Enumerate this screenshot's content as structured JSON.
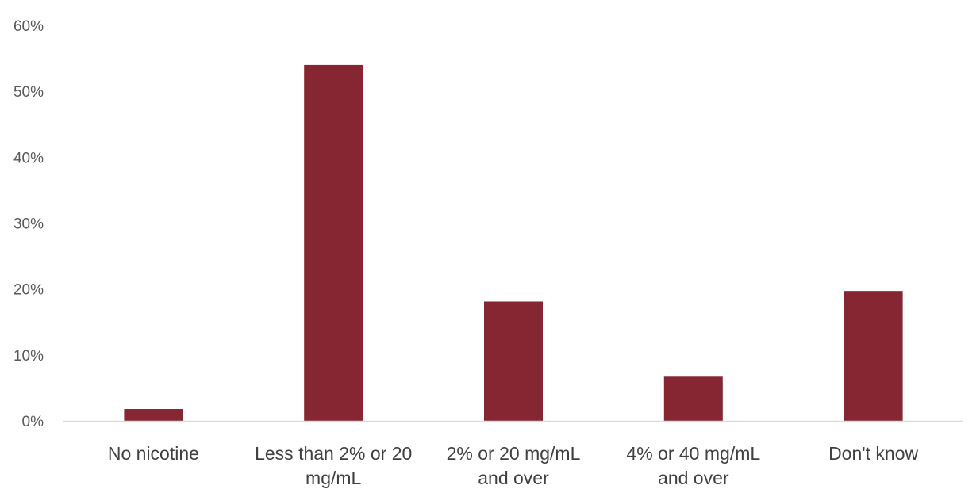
{
  "chart_data": {
    "type": "bar",
    "title": "",
    "xlabel": "",
    "ylabel": "",
    "categories": [
      [
        "No nicotine"
      ],
      [
        "Less than 2% or 20",
        "mg/mL"
      ],
      [
        "2% or 20 mg/mL",
        "and over"
      ],
      [
        "4% or 40 mg/mL",
        "and over"
      ],
      [
        "Don't know"
      ]
    ],
    "values": [
      1.8,
      54.0,
      18.1,
      6.7,
      19.7
    ],
    "ylim": [
      0,
      60
    ],
    "yticks": [
      0,
      10,
      20,
      30,
      40,
      50,
      60
    ],
    "ytick_labels": [
      "0%",
      "10%",
      "20%",
      "30%",
      "40%",
      "50%",
      "60%"
    ],
    "bar_color": "#862633",
    "axis_color": "#d9d9d9",
    "grid": false,
    "legend": "none"
  }
}
